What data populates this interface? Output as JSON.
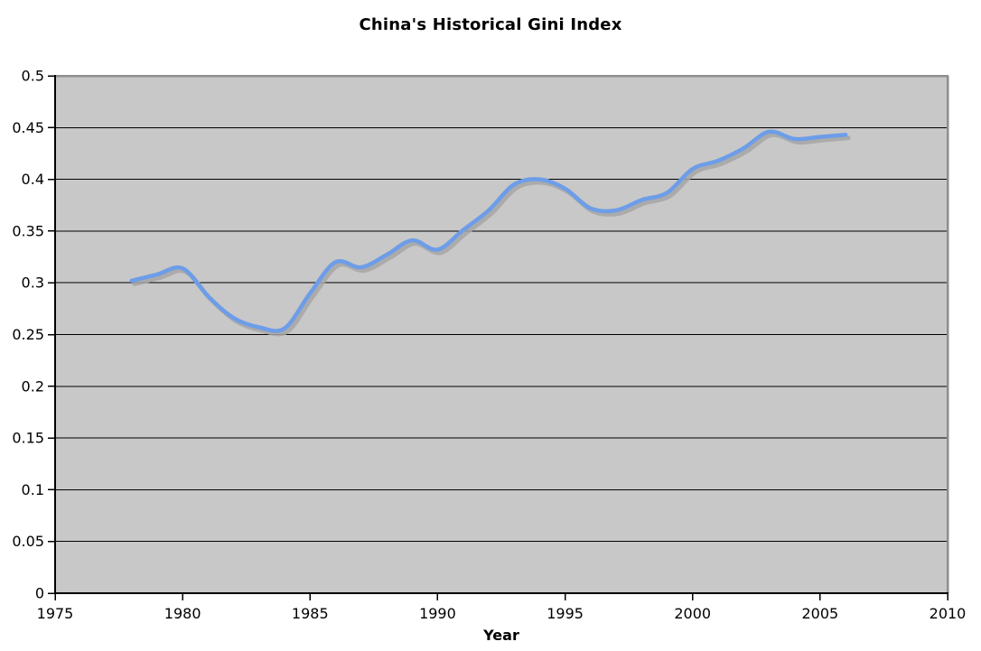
{
  "chart_data": {
    "type": "line",
    "title": "China's Historical Gini Index",
    "xlabel": "Year",
    "ylabel": "",
    "xlim": [
      1975,
      2010
    ],
    "ylim": [
      0,
      0.5
    ],
    "x_ticks": [
      1975,
      1980,
      1985,
      1990,
      1995,
      2000,
      2005,
      2010
    ],
    "x_tick_labels": [
      "1975",
      "1980",
      "1985",
      "1990",
      "1995",
      "2000",
      "2005",
      "2010"
    ],
    "y_ticks": [
      0,
      0.05,
      0.1,
      0.15,
      0.2,
      0.25,
      0.3,
      0.35,
      0.4,
      0.45,
      0.5
    ],
    "y_tick_labels": [
      "0",
      "0.05",
      "0.1",
      "0.15",
      "0.2",
      "0.25",
      "0.3",
      "0.35",
      "0.4",
      "0.45",
      "0.5"
    ],
    "grid": "horizontal",
    "legend": "none",
    "line_style": "smoothed",
    "series": [
      {
        "x": [
          1978,
          1979,
          1980,
          1981,
          1982,
          1983,
          1984,
          1985,
          1986,
          1987,
          1988,
          1989,
          1990,
          1991,
          1992,
          1993,
          1994,
          1995,
          1996,
          1997,
          1998,
          1999,
          2000,
          2001,
          2002,
          2003,
          2004,
          2005,
          2006
        ],
        "y": [
          0.302,
          0.308,
          0.314,
          0.287,
          0.266,
          0.257,
          0.256,
          0.29,
          0.32,
          0.315,
          0.327,
          0.341,
          0.332,
          0.351,
          0.37,
          0.395,
          0.4,
          0.391,
          0.372,
          0.37,
          0.38,
          0.387,
          0.41,
          0.418,
          0.43,
          0.446,
          0.439,
          0.441,
          0.443
        ]
      }
    ],
    "colors": {
      "line": "#6d9de8",
      "line_shadow": "#a6a6a6",
      "plot_bg": "#c8c8c8",
      "gridline": "#000000",
      "axis": "#000000",
      "outer_border": "#8e8e8e",
      "background": "#ffffff",
      "text": "#000000"
    }
  }
}
